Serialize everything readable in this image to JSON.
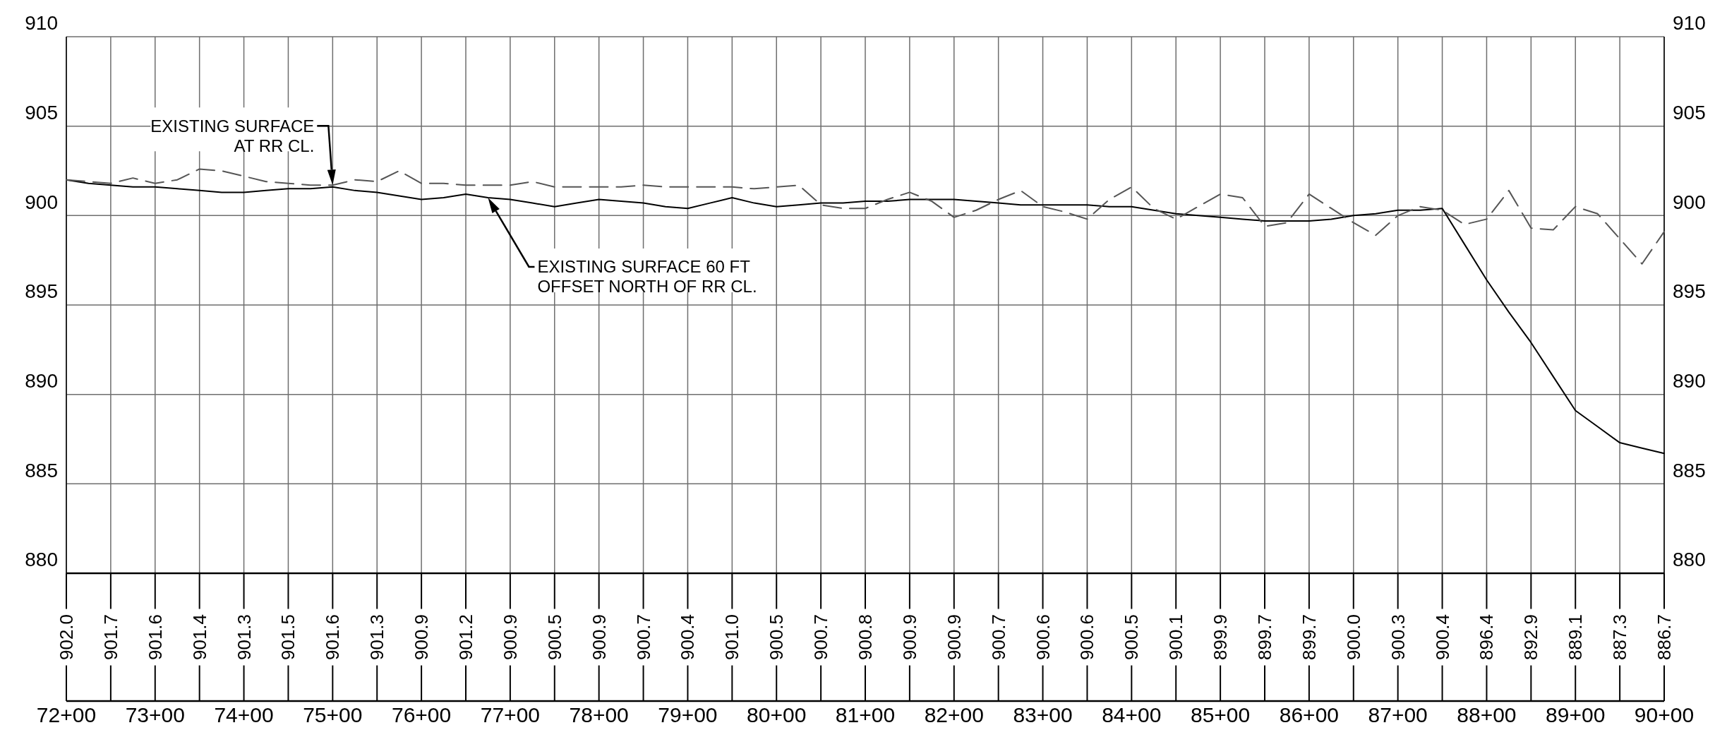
{
  "chart_data": {
    "type": "line",
    "categories": [
      "72+00",
      null,
      null,
      null,
      "73+00",
      null,
      null,
      null,
      "74+00",
      null,
      null,
      null,
      "75+00",
      null,
      null,
      null,
      "76+00",
      null,
      null,
      null,
      "77+00",
      null,
      null,
      null,
      "78+00",
      null,
      null,
      null,
      "79+00",
      null,
      null,
      null,
      "80+00",
      null,
      null,
      null,
      "81+00",
      null,
      null,
      null,
      "82+00",
      null,
      null,
      null,
      "83+00",
      null,
      null,
      null,
      "84+00",
      null,
      null,
      null,
      "85+00",
      null,
      null,
      null,
      "86+00",
      null,
      null,
      null,
      "87+00",
      null,
      null,
      null,
      "88+00",
      null,
      null,
      null,
      "89+00",
      null,
      null,
      null,
      "90+00"
    ],
    "series": [
      {
        "color": "#000000",
        "line_style": "solid",
        "values": [
          902.0,
          901.8,
          901.7,
          901.6,
          901.6,
          901.5,
          901.4,
          901.3,
          901.3,
          901.4,
          901.5,
          901.5,
          901.6,
          901.4,
          901.3,
          901.1,
          900.9,
          901.0,
          901.2,
          901.0,
          900.9,
          900.7,
          900.5,
          900.7,
          900.9,
          900.8,
          900.7,
          900.5,
          900.4,
          900.7,
          901.0,
          900.7,
          900.5,
          900.6,
          900.7,
          900.7,
          900.8,
          900.8,
          900.9,
          900.9,
          900.9,
          900.8,
          900.7,
          900.6,
          900.6,
          900.6,
          900.6,
          900.5,
          900.5,
          900.3,
          900.1,
          900.0,
          899.9,
          899.8,
          899.7,
          899.7,
          899.7,
          899.8,
          900.0,
          900.1,
          900.3,
          900.3,
          900.4,
          898.4,
          896.4,
          894.6,
          892.9,
          891.0,
          889.1,
          888.2,
          887.3,
          887.0,
          886.7
        ],
        "value_labels": [
          "902.0",
          null,
          "901.7",
          null,
          "901.6",
          null,
          "901.4",
          null,
          "901.3",
          null,
          "901.5",
          null,
          "901.6",
          null,
          "901.3",
          null,
          "900.9",
          null,
          "901.2",
          null,
          "900.9",
          null,
          "900.5",
          null,
          "900.9",
          null,
          "900.7",
          null,
          "900.4",
          null,
          "901.0",
          null,
          "900.5",
          null,
          "900.7",
          null,
          "900.8",
          null,
          "900.9",
          null,
          "900.9",
          null,
          "900.7",
          null,
          "900.6",
          null,
          "900.6",
          null,
          "900.5",
          null,
          "900.1",
          null,
          "899.9",
          null,
          "899.7",
          null,
          "899.7",
          null,
          "900.0",
          null,
          "900.3",
          null,
          "900.4",
          null,
          "896.4",
          null,
          "892.9",
          null,
          "889.1",
          null,
          "887.3",
          null,
          "886.7"
        ]
      },
      {
        "color": "#555555",
        "line_style": "dashed",
        "values": [
          902.0,
          901.9,
          901.8,
          902.1,
          901.8,
          902.0,
          902.6,
          902.5,
          902.2,
          901.9,
          901.8,
          901.7,
          901.7,
          902.0,
          901.9,
          902.5,
          901.8,
          901.8,
          901.7,
          901.7,
          901.7,
          901.9,
          901.6,
          901.6,
          901.6,
          901.6,
          901.7,
          901.6,
          901.6,
          901.6,
          901.6,
          901.5,
          901.6,
          901.7,
          900.6,
          900.4,
          900.4,
          900.9,
          901.3,
          900.8,
          899.9,
          900.3,
          900.9,
          901.4,
          900.5,
          900.2,
          899.8,
          900.9,
          901.6,
          900.4,
          899.8,
          900.5,
          901.2,
          901.0,
          899.4,
          899.6,
          901.2,
          900.4,
          899.6,
          898.9,
          900.0,
          900.5,
          900.3,
          899.5,
          899.8,
          901.4,
          899.3,
          899.2,
          900.5,
          900.1,
          898.7,
          897.3,
          899.1
        ]
      }
    ],
    "ylim": [
      880,
      910
    ],
    "yticks": [
      880,
      885,
      890,
      895,
      900,
      905,
      910
    ],
    "y2lim": [
      880,
      910
    ],
    "y2ticks": [
      880,
      885,
      890,
      895,
      900,
      905,
      910
    ],
    "grid": true,
    "annotations": [
      {
        "text": "EXISTING SURFACE\nAT RR CL.",
        "x": "75+00",
        "y": 901.7
      },
      "EXISTING SURFACE 60 FT\nOFFSET NORTH OF RR CL."
    ]
  }
}
